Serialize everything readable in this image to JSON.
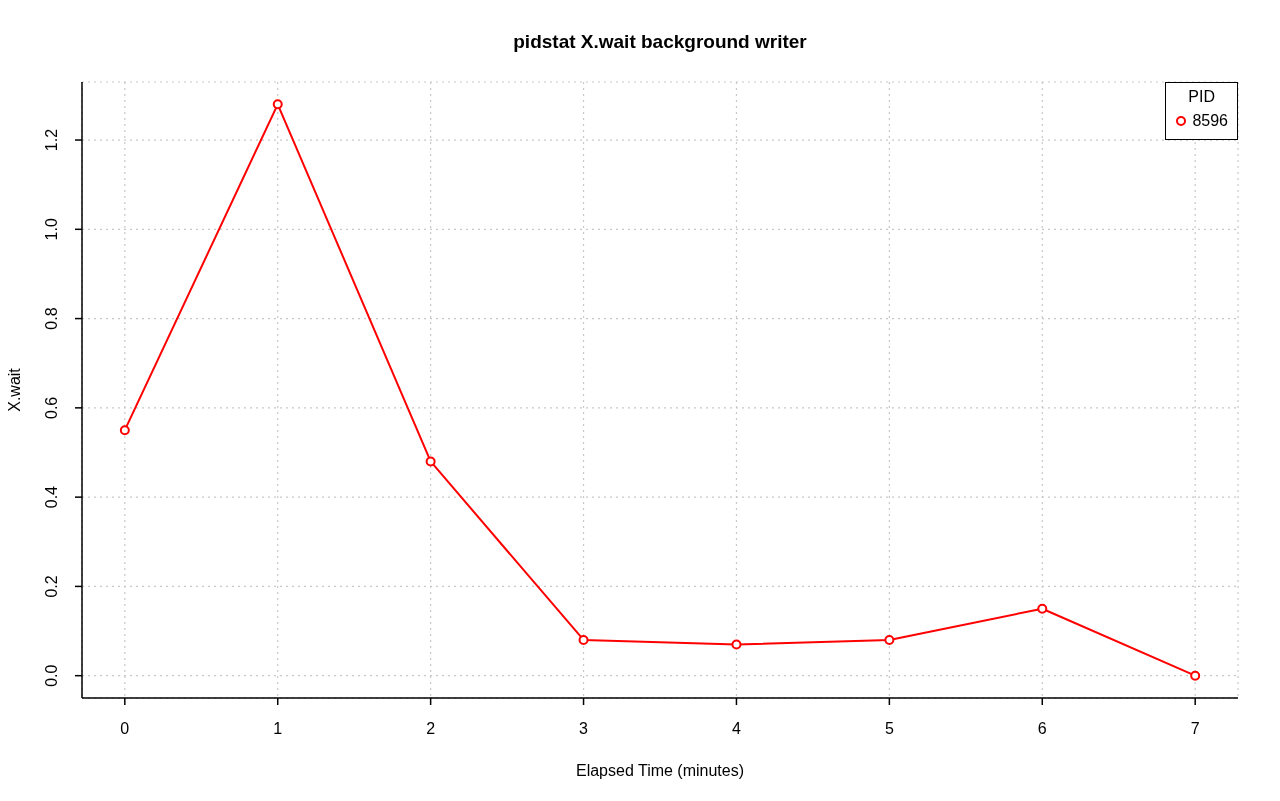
{
  "chart_data": {
    "type": "line",
    "title": "pidstat X.wait background writer",
    "xlabel": "Elapsed Time (minutes)",
    "ylabel": "X.wait",
    "legend_title": "PID",
    "x": [
      0,
      1,
      2,
      3,
      4,
      5,
      6,
      7
    ],
    "series": [
      {
        "name": "8596",
        "color": "#ff0000",
        "values": [
          0.55,
          1.28,
          0.48,
          0.08,
          0.07,
          0.08,
          0.15,
          0
        ]
      }
    ],
    "xlim": [
      -0.28,
      7.28
    ],
    "xticks": [
      0,
      1,
      2,
      3,
      4,
      5,
      6,
      7
    ],
    "ylim": [
      -0.05,
      1.33
    ],
    "yticks": [
      {
        "value": 0,
        "label": "0.0"
      },
      0.2,
      0.4,
      0.6,
      0.8,
      {
        "value": 1,
        "label": "1.0"
      },
      1.2
    ],
    "grid": true,
    "legend": "top right",
    "marker": "circle",
    "line_style": "solid"
  }
}
